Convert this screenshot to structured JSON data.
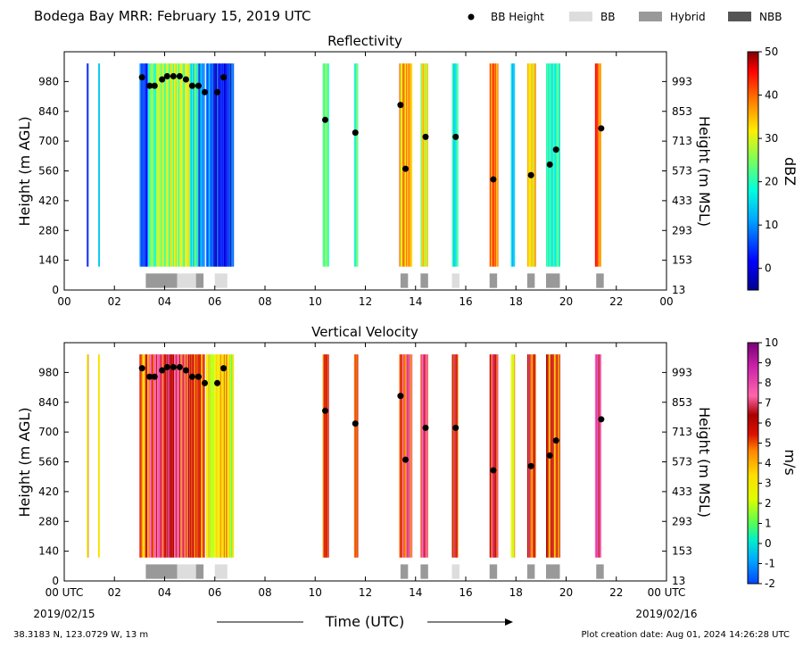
{
  "header": {
    "title": "Bodega Bay MRR:  February 15, 2019 UTC",
    "legend": [
      {
        "label": "BB Height",
        "kind": "dot",
        "color": "#000000"
      },
      {
        "label": "BB",
        "kind": "box",
        "color": "#dddddd"
      },
      {
        "label": "Hybrid",
        "kind": "box",
        "color": "#999999"
      },
      {
        "label": "NBB",
        "kind": "box",
        "color": "#555555"
      }
    ]
  },
  "footer": {
    "location": "38.3183 N, 123.0729 W, 13 m",
    "created": "Plot creation date: Aug 01, 2024 14:26:28 UTC",
    "xlabel": "Time (UTC)",
    "start_date": "2019/02/15",
    "end_date": "2019/02/16",
    "first_tick": "00 UTC",
    "last_tick": "00 UTC"
  },
  "chart_data": [
    {
      "type": "heatmap",
      "title": "Reflectivity",
      "ylabel_left": "Height (m AGL)",
      "ylabel_right": "Height (m MSL)",
      "colorbar_label": "dBZ",
      "colorbar_ticks": [
        50,
        40,
        30,
        20,
        10,
        0
      ],
      "colorbar_range": [
        -5,
        50
      ],
      "x_ticks": [
        "00",
        "02",
        "04",
        "06",
        "08",
        "10",
        "12",
        "14",
        "16",
        "18",
        "20",
        "22",
        "00"
      ],
      "xlim_hours": [
        0,
        24
      ],
      "ylim_m_agl": [
        0,
        1120
      ],
      "y_ticks_left": [
        0,
        140,
        280,
        420,
        560,
        700,
        840,
        980
      ],
      "y_ticks_right": [
        13,
        153,
        293,
        433,
        573,
        713,
        853,
        993
      ],
      "bb_height": [
        [
          3.1,
          1000
        ],
        [
          3.4,
          960
        ],
        [
          3.6,
          960
        ],
        [
          3.9,
          990
        ],
        [
          4.1,
          1005
        ],
        [
          4.35,
          1005
        ],
        [
          4.6,
          1005
        ],
        [
          4.85,
          990
        ],
        [
          5.1,
          960
        ],
        [
          5.35,
          960
        ],
        [
          5.6,
          930
        ],
        [
          6.1,
          930
        ],
        [
          6.35,
          1000
        ],
        [
          10.4,
          800
        ],
        [
          11.6,
          740
        ],
        [
          13.4,
          870
        ],
        [
          13.6,
          570
        ],
        [
          14.4,
          720
        ],
        [
          15.6,
          720
        ],
        [
          17.1,
          520
        ],
        [
          18.6,
          540
        ],
        [
          19.35,
          590
        ],
        [
          19.6,
          660
        ],
        [
          21.4,
          760
        ]
      ],
      "bb_type_bars": [
        [
          3.25,
          4.5,
          "Hybrid"
        ],
        [
          4.5,
          5.25,
          "BB"
        ],
        [
          5.25,
          5.55,
          "Hybrid"
        ],
        [
          6.0,
          6.5,
          "BB"
        ],
        [
          13.4,
          13.7,
          "Hybrid"
        ],
        [
          14.2,
          14.5,
          "Hybrid"
        ],
        [
          15.45,
          15.75,
          "BB"
        ],
        [
          16.95,
          17.25,
          "Hybrid"
        ],
        [
          18.45,
          18.75,
          "Hybrid"
        ],
        [
          19.2,
          19.75,
          "Hybrid"
        ],
        [
          21.2,
          21.5,
          "Hybrid"
        ]
      ]
    },
    {
      "type": "heatmap",
      "title": "Vertical Velocity",
      "ylabel_left": "Height (m AGL)",
      "ylabel_right": "Height (m MSL)",
      "colorbar_label": "m/s",
      "colorbar_ticks": [
        10,
        9,
        8,
        7,
        6,
        5,
        4,
        3,
        2,
        1,
        0,
        -1,
        -2
      ],
      "colorbar_range": [
        -2,
        10
      ],
      "x_ticks": [
        "00",
        "02",
        "04",
        "06",
        "08",
        "10",
        "12",
        "14",
        "16",
        "18",
        "20",
        "22",
        "00"
      ],
      "xlim_hours": [
        0,
        24
      ],
      "ylim_m_agl": [
        0,
        1120
      ],
      "y_ticks_left": [
        0,
        140,
        280,
        420,
        560,
        700,
        840,
        980
      ],
      "y_ticks_right": [
        13,
        153,
        293,
        433,
        573,
        713,
        853,
        993
      ],
      "bb_height": [
        [
          3.1,
          1000
        ],
        [
          3.4,
          960
        ],
        [
          3.6,
          960
        ],
        [
          3.9,
          990
        ],
        [
          4.1,
          1005
        ],
        [
          4.35,
          1005
        ],
        [
          4.6,
          1005
        ],
        [
          4.85,
          990
        ],
        [
          5.1,
          960
        ],
        [
          5.35,
          960
        ],
        [
          5.6,
          930
        ],
        [
          6.1,
          930
        ],
        [
          6.35,
          1000
        ],
        [
          10.4,
          800
        ],
        [
          11.6,
          740
        ],
        [
          13.4,
          870
        ],
        [
          13.6,
          570
        ],
        [
          14.4,
          720
        ],
        [
          15.6,
          720
        ],
        [
          17.1,
          520
        ],
        [
          18.6,
          540
        ],
        [
          19.35,
          590
        ],
        [
          19.6,
          660
        ],
        [
          21.4,
          760
        ]
      ],
      "bb_type_bars": [
        [
          3.25,
          4.5,
          "Hybrid"
        ],
        [
          4.5,
          5.25,
          "BB"
        ],
        [
          5.25,
          5.55,
          "Hybrid"
        ],
        [
          6.0,
          6.5,
          "BB"
        ],
        [
          13.4,
          13.7,
          "Hybrid"
        ],
        [
          14.2,
          14.5,
          "Hybrid"
        ],
        [
          15.45,
          15.75,
          "BB"
        ],
        [
          16.95,
          17.25,
          "Hybrid"
        ],
        [
          18.45,
          18.75,
          "Hybrid"
        ],
        [
          19.2,
          19.75,
          "Hybrid"
        ],
        [
          21.2,
          21.5,
          "Hybrid"
        ]
      ]
    }
  ],
  "precip_periods": [
    {
      "start": 0.9,
      "end": 0.95,
      "refl": 8,
      "vv": 4
    },
    {
      "start": 1.35,
      "end": 1.42,
      "refl": 18,
      "vv": 3
    },
    {
      "start": 3.0,
      "end": 3.35,
      "refl": 6,
      "vv": 5
    },
    {
      "start": 3.35,
      "end": 3.7,
      "refl": 24,
      "vv": 6
    },
    {
      "start": 3.7,
      "end": 4.4,
      "refl": 28,
      "vv": 6.5
    },
    {
      "start": 4.4,
      "end": 5.0,
      "refl": 26,
      "vv": 6
    },
    {
      "start": 5.0,
      "end": 5.35,
      "refl": 18,
      "vv": 5
    },
    {
      "start": 5.35,
      "end": 5.6,
      "refl": 8,
      "vv": 4.5
    },
    {
      "start": 5.65,
      "end": 5.95,
      "refl": 5,
      "vv": 3
    },
    {
      "start": 5.95,
      "end": 6.6,
      "refl": 4,
      "vv": 4
    },
    {
      "start": 6.6,
      "end": 6.75,
      "refl": 2,
      "vv": 2
    },
    {
      "start": 10.3,
      "end": 10.55,
      "refl": 22,
      "vv": 6
    },
    {
      "start": 11.55,
      "end": 11.7,
      "refl": 20,
      "vv": 6
    },
    {
      "start": 13.35,
      "end": 13.85,
      "refl": 35,
      "vv": 6
    },
    {
      "start": 14.2,
      "end": 14.5,
      "refl": 30,
      "vv": 6.5
    },
    {
      "start": 15.45,
      "end": 15.7,
      "refl": 22,
      "vv": 6
    },
    {
      "start": 16.95,
      "end": 17.3,
      "refl": 38,
      "vv": 6.5
    },
    {
      "start": 17.8,
      "end": 17.95,
      "refl": 16,
      "vv": 3
    },
    {
      "start": 18.45,
      "end": 18.8,
      "refl": 34,
      "vv": 6
    },
    {
      "start": 19.2,
      "end": 19.75,
      "refl": 20,
      "vv": 5
    },
    {
      "start": 21.15,
      "end": 21.4,
      "refl": 40,
      "vv": 7
    }
  ]
}
